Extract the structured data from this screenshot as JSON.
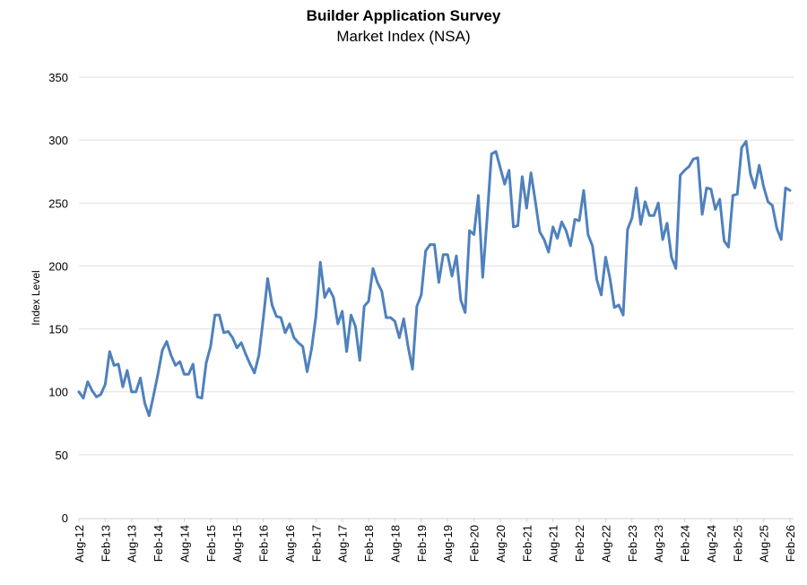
{
  "chart_data": {
    "type": "line",
    "title": "Builder Application Survey",
    "subtitle": "Market Index (NSA)",
    "xlabel": "",
    "ylabel": "Index Level",
    "ylim": [
      0,
      350
    ],
    "yticks": [
      0,
      50,
      100,
      150,
      200,
      250,
      300,
      350
    ],
    "grid": true,
    "legend": "none",
    "start_month": "Aug-12",
    "x_tick_labels": [
      "Aug-12",
      "Feb-13",
      "Aug-13",
      "Feb-14",
      "Aug-14",
      "Feb-15",
      "Aug-15",
      "Feb-16",
      "Aug-16",
      "Feb-17",
      "Aug-17",
      "Feb-18",
      "Aug-18",
      "Feb-19",
      "Aug-19",
      "Feb-20",
      "Aug-20",
      "Feb-21",
      "Aug-21",
      "Feb-22",
      "Aug-22",
      "Feb-23",
      "Aug-23",
      "Feb-24",
      "Aug-24",
      "Feb-25",
      "Aug-25",
      "Feb-26"
    ],
    "x_tick_interval_months": 6,
    "series": [
      {
        "name": "Market Index (NSA)",
        "color": "#4f81bd",
        "values": [
          100,
          95,
          108,
          101,
          96,
          98,
          106,
          132,
          121,
          122,
          104,
          117,
          100,
          100,
          111,
          91,
          81,
          97,
          114,
          133,
          140,
          129,
          121,
          124,
          114,
          114,
          122,
          96,
          95,
          123,
          136,
          161,
          161,
          147,
          148,
          143,
          135,
          139,
          130,
          122,
          115,
          129,
          158,
          190,
          169,
          160,
          159,
          147,
          154,
          143,
          139,
          136,
          116,
          134,
          160,
          203,
          175,
          182,
          175,
          154,
          164,
          132,
          161,
          152,
          125,
          168,
          172,
          198,
          187,
          180,
          159,
          159,
          156,
          143,
          158,
          136,
          118,
          168,
          177,
          212,
          217,
          217,
          187,
          209,
          209,
          192,
          208,
          173,
          163,
          228,
          225,
          256,
          191,
          238,
          289,
          291,
          278,
          265,
          276,
          231,
          232,
          271,
          246,
          274,
          251,
          227,
          221,
          211,
          231,
          222,
          235,
          228,
          216,
          237,
          236,
          260,
          225,
          216,
          189,
          177,
          207,
          190,
          167,
          169,
          161,
          229,
          238,
          262,
          233,
          251,
          240,
          240,
          250,
          221,
          234,
          207,
          198,
          272,
          276,
          279,
          285,
          286,
          241,
          262,
          261,
          245,
          253,
          220,
          215,
          256,
          257,
          294,
          299,
          273,
          262,
          280,
          263,
          251,
          248,
          230,
          221,
          262,
          260
        ]
      }
    ]
  }
}
